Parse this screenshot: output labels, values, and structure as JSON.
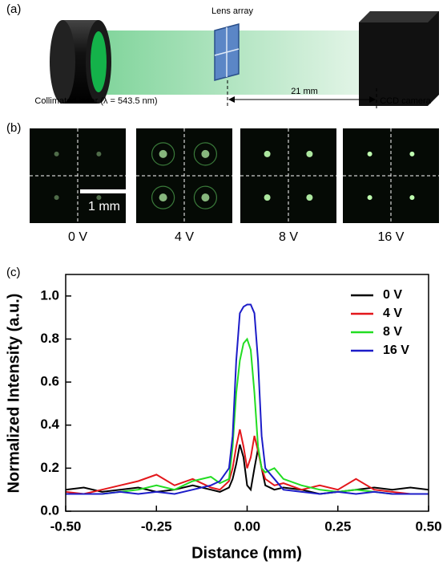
{
  "panel_a": {
    "label": "(a)",
    "lens_array": "Lens array",
    "laser": "Collimated laser (λ = 543.5 nm)",
    "distance": "21 mm",
    "camera": "CCD camera"
  },
  "panel_b": {
    "label": "(b)",
    "scale_bar": "1 mm",
    "voltages": [
      "0 V",
      "4 V",
      "8 V",
      "16 V"
    ]
  },
  "chart_data": {
    "type": "line",
    "panel_label": "(c)",
    "x_label": "Distance (mm)",
    "y_label": "Normalized Intensity (a.u.)",
    "x": [
      -0.5,
      -0.45,
      -0.4,
      -0.35,
      -0.3,
      -0.25,
      -0.2,
      -0.15,
      -0.1,
      -0.075,
      -0.05,
      -0.04,
      -0.03,
      -0.02,
      -0.01,
      0,
      0.01,
      0.02,
      0.03,
      0.04,
      0.05,
      0.075,
      0.1,
      0.15,
      0.2,
      0.25,
      0.3,
      0.35,
      0.4,
      0.45,
      0.5
    ],
    "series": [
      {
        "name": "0 V",
        "color": "#000000",
        "values": [
          0.1,
          0.11,
          0.09,
          0.1,
          0.11,
          0.09,
          0.1,
          0.12,
          0.1,
          0.09,
          0.11,
          0.15,
          0.22,
          0.31,
          0.25,
          0.12,
          0.1,
          0.2,
          0.29,
          0.2,
          0.12,
          0.1,
          0.11,
          0.1,
          0.08,
          0.09,
          0.1,
          0.11,
          0.1,
          0.11,
          0.1
        ]
      },
      {
        "name": "4 V",
        "color": "#e3171b",
        "values": [
          0.09,
          0.08,
          0.1,
          0.12,
          0.14,
          0.17,
          0.12,
          0.15,
          0.11,
          0.1,
          0.14,
          0.2,
          0.3,
          0.38,
          0.3,
          0.2,
          0.25,
          0.35,
          0.28,
          0.2,
          0.15,
          0.12,
          0.13,
          0.1,
          0.12,
          0.1,
          0.15,
          0.1,
          0.09,
          0.08,
          0.08
        ]
      },
      {
        "name": "8 V",
        "color": "#22dd22",
        "values": [
          0.08,
          0.08,
          0.08,
          0.09,
          0.1,
          0.12,
          0.1,
          0.14,
          0.16,
          0.13,
          0.15,
          0.3,
          0.55,
          0.7,
          0.78,
          0.8,
          0.75,
          0.55,
          0.3,
          0.2,
          0.18,
          0.2,
          0.15,
          0.12,
          0.1,
          0.09,
          0.1,
          0.09,
          0.08,
          0.08,
          0.08
        ]
      },
      {
        "name": "16 V",
        "color": "#1c1cc8",
        "values": [
          0.08,
          0.08,
          0.08,
          0.09,
          0.08,
          0.09,
          0.08,
          0.1,
          0.12,
          0.14,
          0.2,
          0.35,
          0.7,
          0.92,
          0.95,
          0.96,
          0.96,
          0.92,
          0.7,
          0.35,
          0.2,
          0.15,
          0.1,
          0.09,
          0.08,
          0.09,
          0.08,
          0.09,
          0.08,
          0.08,
          0.08
        ]
      }
    ],
    "xlim": [
      -0.5,
      0.5
    ],
    "xticks": [
      {
        "value": -0.5,
        "label": "-0.50"
      },
      {
        "value": -0.25,
        "label": "-0.25"
      },
      {
        "value": 0,
        "label": "0.00"
      },
      {
        "value": 0.25,
        "label": "0.25"
      },
      {
        "value": 0.5,
        "label": "0.50"
      }
    ],
    "ylim": [
      0,
      1.1
    ],
    "yticks": [
      {
        "value": 0,
        "label": "0.0"
      },
      {
        "value": 0.2,
        "label": "0.2"
      },
      {
        "value": 0.4,
        "label": "0.4"
      },
      {
        "value": 0.6,
        "label": "0.6"
      },
      {
        "value": 0.8,
        "label": "0.8"
      },
      {
        "value": 1.0,
        "label": "1.0"
      }
    ],
    "legend": "upper right"
  }
}
